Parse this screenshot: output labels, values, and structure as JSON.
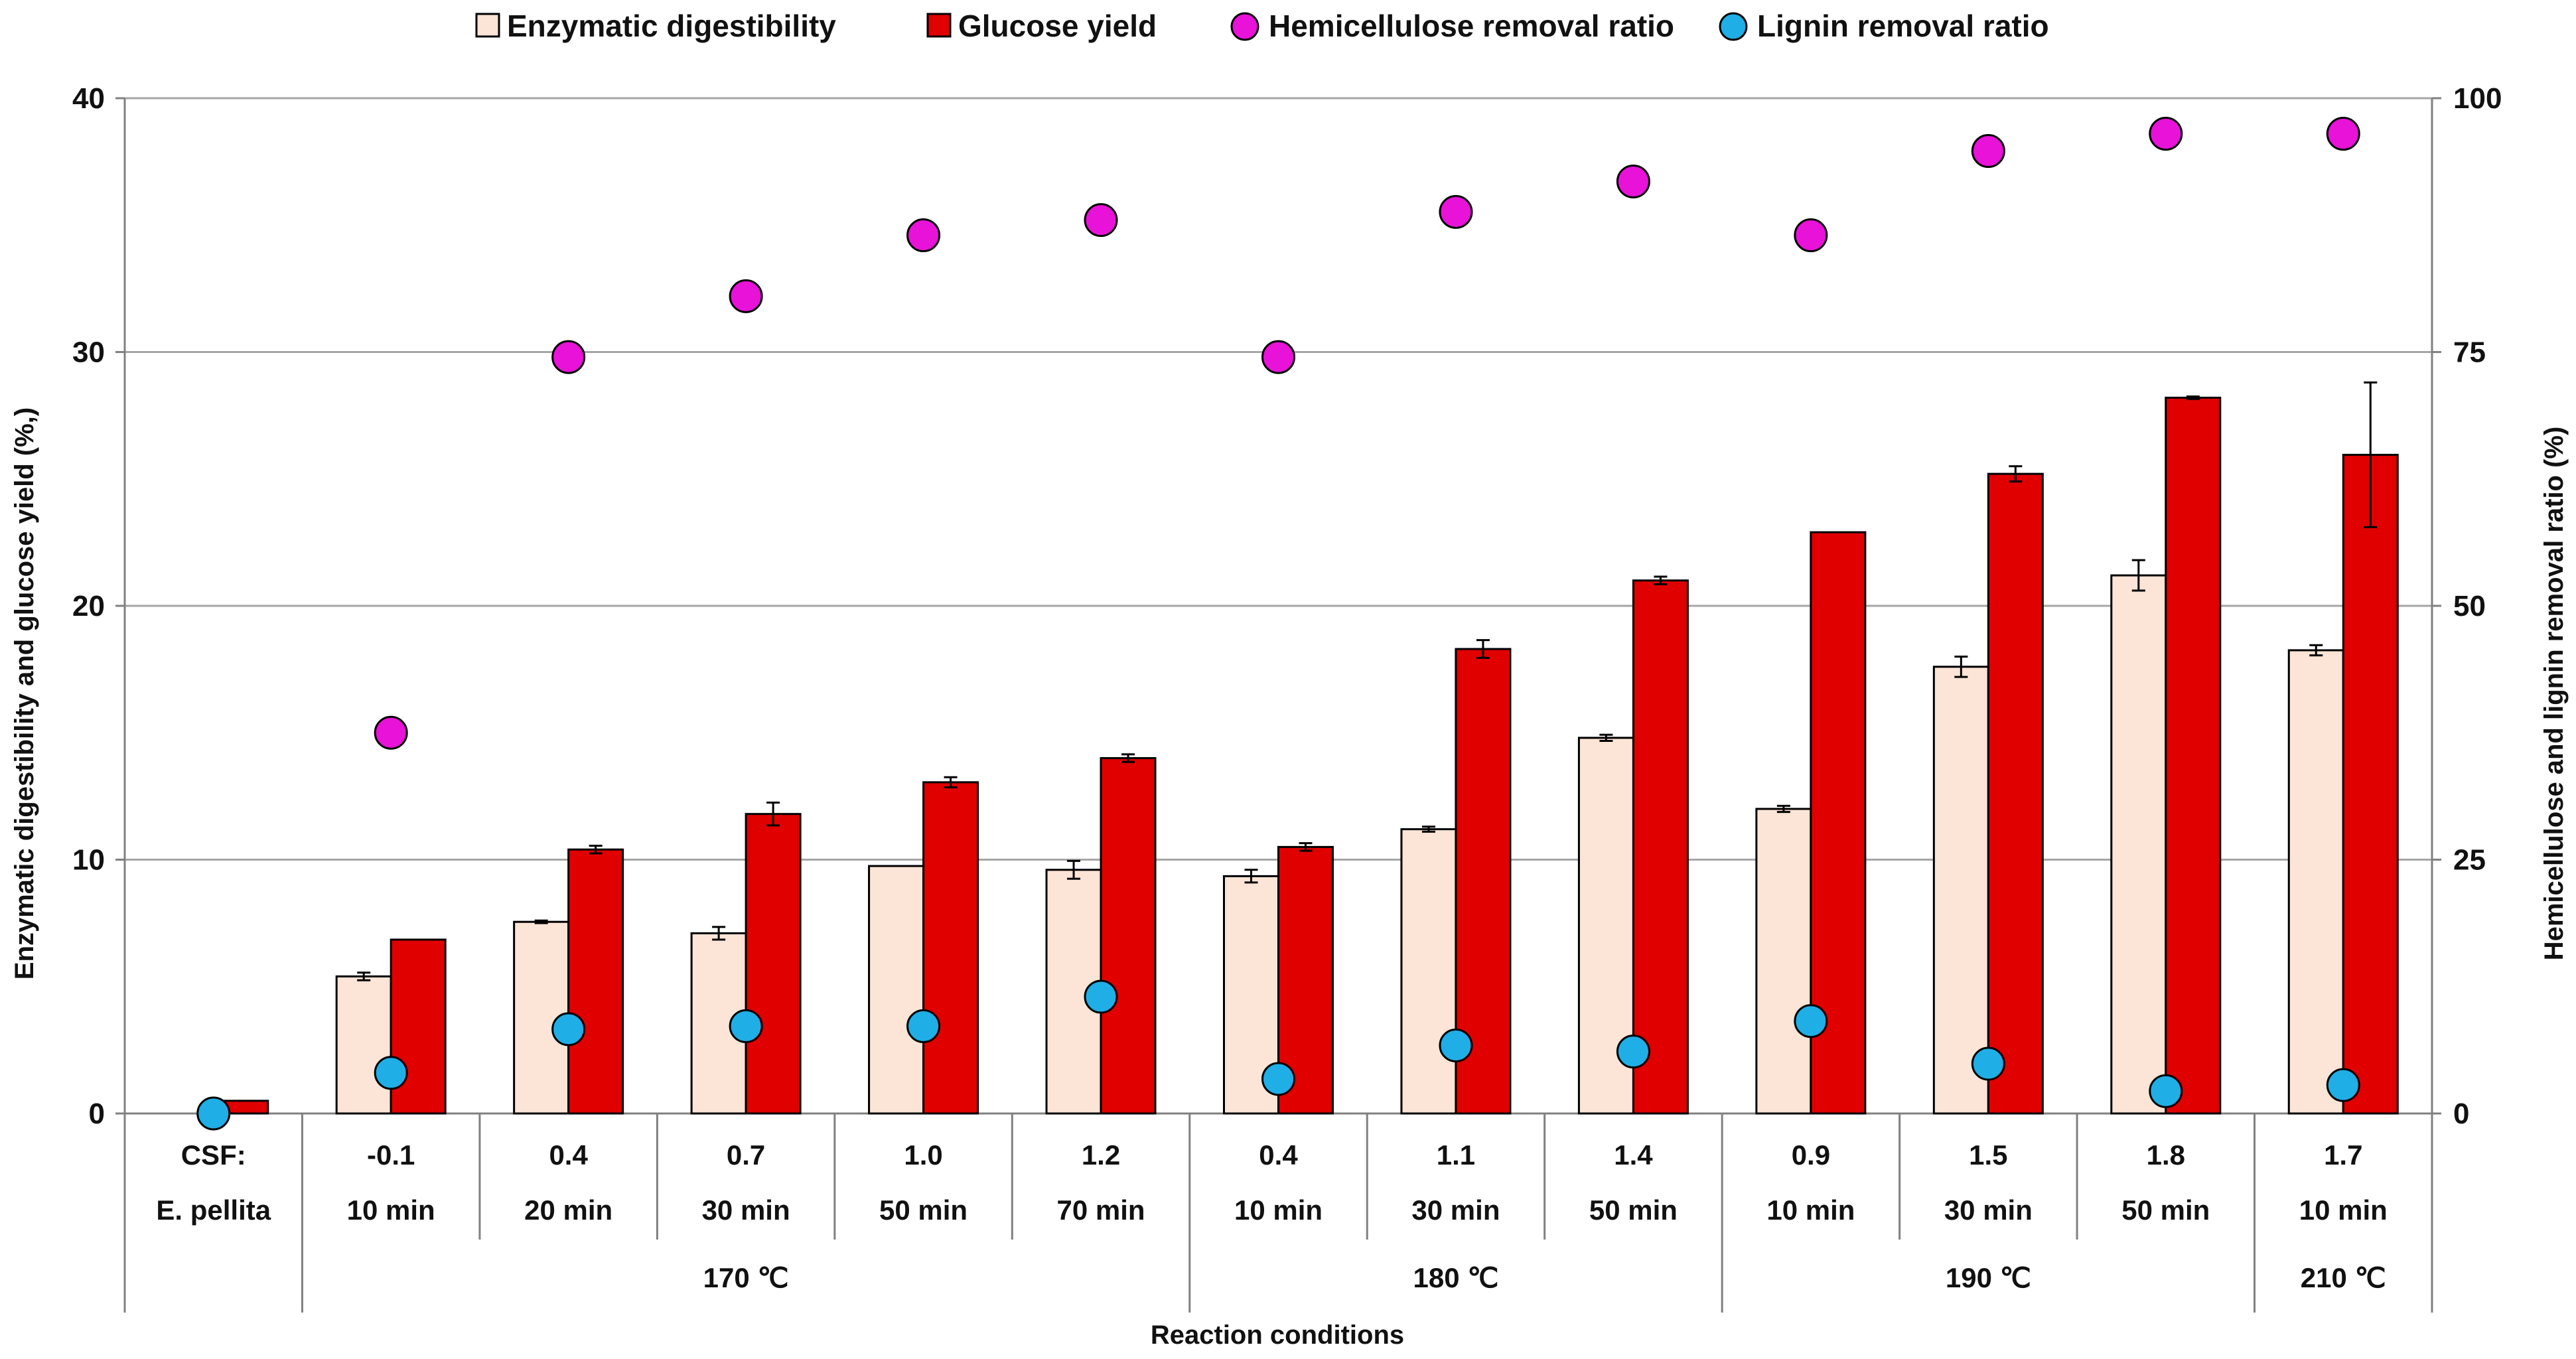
{
  "chart_data": {
    "type": "bar",
    "title": "",
    "legend": {
      "placement": "top",
      "items": [
        {
          "label": "Enzymatic digestibility",
          "kind": "bar",
          "color": "#FCE4D6"
        },
        {
          "label": "Glucose yield",
          "kind": "bar",
          "color": "#E00000"
        },
        {
          "label": "Hemicellulose removal ratio",
          "kind": "marker",
          "color": "#E812D8"
        },
        {
          "label": "Lignin removal ratio",
          "kind": "marker",
          "color": "#1FAEE6"
        }
      ]
    },
    "ylabel_left": "Enzymatic digestibility and glucose yield (%,)",
    "ylabel_right": "Hemicellulose and lignin removal ratio (%)",
    "xlabel": "Reaction conditions",
    "ylim_left": [
      0,
      40
    ],
    "yticks_left": [
      0,
      10,
      20,
      30,
      40
    ],
    "ylim_right": [
      0,
      100
    ],
    "yticks_right": [
      0,
      25,
      50,
      75,
      100
    ],
    "gridlines": true,
    "csf_label": "CSF:",
    "categories": [
      {
        "csf": "",
        "time": "E. pellita"
      },
      {
        "csf": "-0.1",
        "time": "10 min"
      },
      {
        "csf": "0.4",
        "time": "20 min"
      },
      {
        "csf": "0.7",
        "time": "30 min"
      },
      {
        "csf": "1.0",
        "time": "50 min"
      },
      {
        "csf": "1.2",
        "time": "70 min"
      },
      {
        "csf": "0.4",
        "time": "10 min"
      },
      {
        "csf": "1.1",
        "time": "30 min"
      },
      {
        "csf": "1.4",
        "time": "50 min"
      },
      {
        "csf": "0.9",
        "time": "10 min"
      },
      {
        "csf": "1.5",
        "time": "30 min"
      },
      {
        "csf": "1.8",
        "time": "50 min"
      },
      {
        "csf": "1.7",
        "time": "10 min"
      }
    ],
    "groups": [
      {
        "label": "",
        "from": 0,
        "to": 0
      },
      {
        "label": "170 ℃",
        "from": 1,
        "to": 5
      },
      {
        "label": "180 ℃",
        "from": 6,
        "to": 8
      },
      {
        "label": "190 ℃",
        "from": 9,
        "to": 11
      },
      {
        "label": "210 ℃",
        "from": 12,
        "to": 12
      }
    ],
    "series": [
      {
        "name": "Enzymatic digestibility",
        "type": "bar",
        "axis": "left",
        "color": "#FCE4D6",
        "values": [
          0,
          5.4,
          7.55,
          7.1,
          9.75,
          9.6,
          9.35,
          11.2,
          14.8,
          12.0,
          17.6,
          21.2,
          18.25
        ],
        "errors": [
          0,
          0.15,
          0.05,
          0.25,
          0,
          0.35,
          0.25,
          0.1,
          0.12,
          0.12,
          0.4,
          0.6,
          0.2
        ]
      },
      {
        "name": "Glucose yield",
        "type": "bar",
        "axis": "left",
        "color": "#E00000",
        "values": [
          0.5,
          6.85,
          10.4,
          11.8,
          13.05,
          14.0,
          10.5,
          18.3,
          21.0,
          22.9,
          25.2,
          28.2,
          25.95
        ],
        "errors": [
          0,
          0,
          0.15,
          0.45,
          0.2,
          0.15,
          0.15,
          0.35,
          0.15,
          0,
          0.3,
          0.05,
          2.85
        ]
      },
      {
        "name": "Hemicellulose removal ratio",
        "type": "scatter",
        "axis": "right",
        "color": "#E812D8",
        "values": [
          null,
          37.5,
          74.5,
          80.5,
          86.5,
          88.0,
          74.5,
          88.8,
          91.8,
          86.5,
          94.8,
          96.5,
          96.5
        ]
      },
      {
        "name": "Lignin removal ratio",
        "type": "scatter",
        "axis": "right",
        "color": "#1FAEE6",
        "values": [
          0,
          4.0,
          8.3,
          8.6,
          8.6,
          11.5,
          3.4,
          6.7,
          6.1,
          9.1,
          4.9,
          2.2,
          2.8
        ]
      }
    ]
  }
}
